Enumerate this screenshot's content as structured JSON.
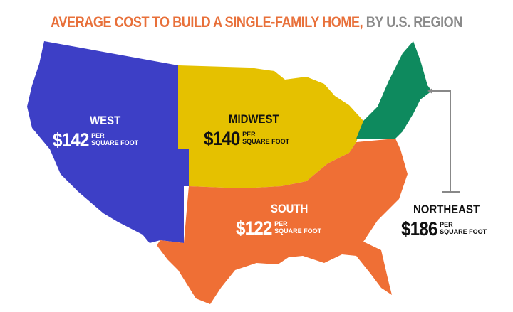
{
  "title": {
    "main": "AVERAGE COST TO BUILD A SINGLE-FAMILY HOME,",
    "sub": " BY U.S. REGION"
  },
  "per_label": "PER",
  "unit_label": "SQUARE FOOT",
  "regions": [
    {
      "name": "WEST",
      "price": "$142",
      "color": "#3d3fc6"
    },
    {
      "name": "MIDWEST",
      "price": "$140",
      "color": "#e5c100"
    },
    {
      "name": "SOUTH",
      "price": "$122",
      "color": "#ef6f35"
    },
    {
      "name": "NORTHEAST",
      "price": "$186",
      "color": "#0e8a5e"
    }
  ]
}
